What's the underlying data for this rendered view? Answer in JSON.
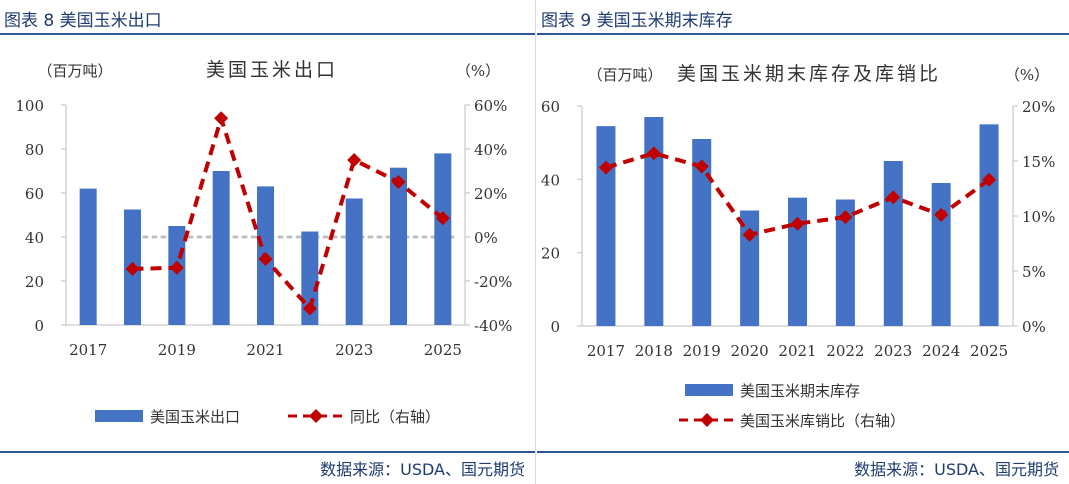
{
  "left": {
    "figure_title": "图表 8  美国玉米出口",
    "source": "数据来源：USDA、国元期货",
    "chart_data": {
      "type": "bar+line",
      "title": "美国玉米出口",
      "left_unit": "（百万吨）",
      "right_unit": "（%）",
      "categories": [
        "2017",
        "2018",
        "2019",
        "2020",
        "2021",
        "2022",
        "2023",
        "2024",
        "2025"
      ],
      "x_tick_labels": [
        "2017",
        "2019",
        "2021",
        "2023",
        "2025"
      ],
      "left_ticks": [
        "0",
        "20",
        "40",
        "60",
        "80",
        "100"
      ],
      "right_ticks": [
        "-40%",
        "-20%",
        "0%",
        "20%",
        "40%",
        "60%"
      ],
      "ylim_left": [
        0,
        100
      ],
      "ylim_right": [
        -40,
        60
      ],
      "series": [
        {
          "name": "美国玉米出口",
          "type": "bar",
          "axis": "left",
          "color": "#4472c4",
          "values": [
            62,
            52.5,
            45,
            70,
            63,
            42.5,
            57.5,
            71.5,
            78
          ]
        },
        {
          "name": "同比（右轴）",
          "type": "line",
          "axis": "right",
          "color": "#c00000",
          "values": [
            null,
            -14.5,
            -14,
            54,
            -10,
            -32.5,
            35,
            25,
            8.5
          ]
        }
      ],
      "zero_line": true
    }
  },
  "right": {
    "figure_title": "图表 9  美国玉米期末库存",
    "source": "数据来源：USDA、国元期货",
    "chart_data": {
      "type": "bar+line",
      "title": "美国玉米期末库存及库销比",
      "left_unit": "（百万吨）",
      "right_unit": "（%）",
      "categories": [
        "2017",
        "2018",
        "2019",
        "2020",
        "2021",
        "2022",
        "2023",
        "2024",
        "2025"
      ],
      "x_tick_labels": [
        "2017",
        "2018",
        "2019",
        "2020",
        "2021",
        "2022",
        "2023",
        "2024",
        "2025"
      ],
      "left_ticks": [
        "0",
        "20",
        "40",
        "60"
      ],
      "right_ticks": [
        "0%",
        "5%",
        "10%",
        "15%",
        "20%"
      ],
      "ylim_left": [
        0,
        60
      ],
      "ylim_right": [
        0,
        20
      ],
      "series": [
        {
          "name": "美国玉米期末库存",
          "type": "bar",
          "axis": "left",
          "color": "#4472c4",
          "values": [
            54.5,
            57,
            51,
            31.5,
            35,
            34.5,
            45,
            39,
            55
          ]
        },
        {
          "name": "美国玉米库销比（右轴）",
          "type": "line",
          "axis": "right",
          "color": "#c00000",
          "values": [
            14.4,
            15.7,
            14.5,
            8.3,
            9.3,
            9.9,
            11.7,
            10.1,
            13.3
          ]
        }
      ]
    }
  }
}
